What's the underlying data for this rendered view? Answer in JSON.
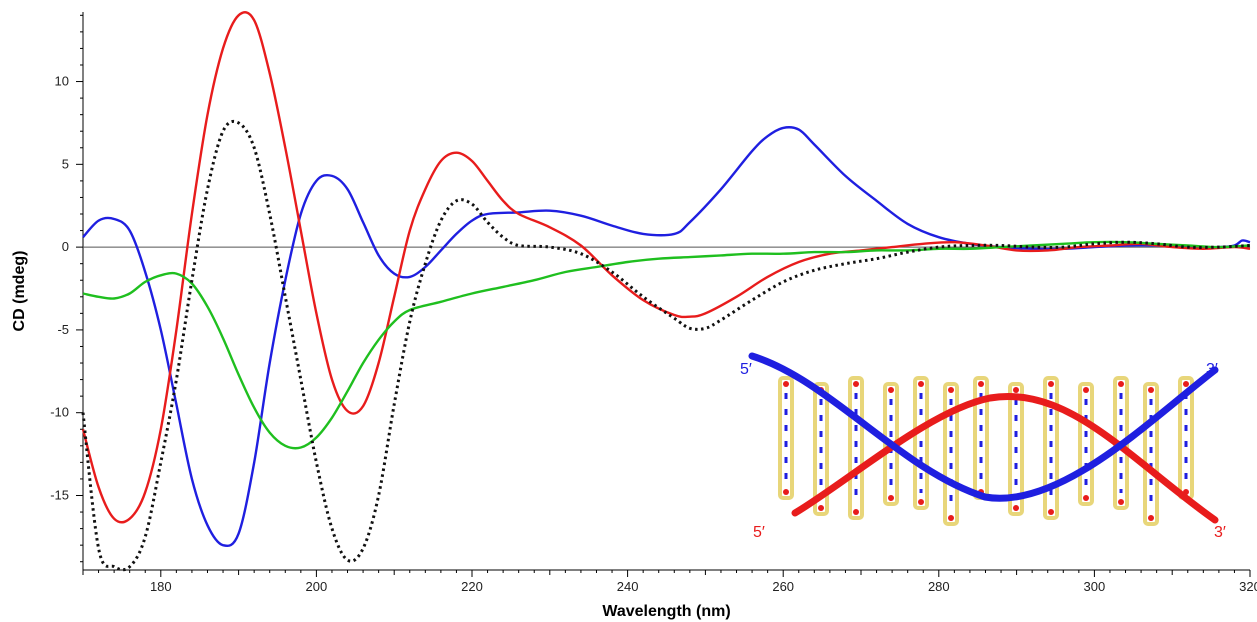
{
  "chart_data": {
    "type": "line",
    "title": "",
    "xlabel": "Wavelength  (nm)",
    "ylabel": "CD (mdeg)",
    "xlim": [
      170,
      320
    ],
    "ylim": [
      -19.5,
      14.2
    ],
    "xticks": [
      180,
      200,
      220,
      240,
      260,
      280,
      300,
      320
    ],
    "yticks": [
      10,
      5,
      0,
      -5,
      -10,
      -15
    ],
    "grid": false,
    "zero_line": true,
    "series": [
      {
        "color": "#1f1fe0",
        "style": "solid",
        "points": [
          [
            170,
            0.6
          ],
          [
            172,
            1.6
          ],
          [
            174,
            1.7
          ],
          [
            176,
            1.0
          ],
          [
            178,
            -1.5
          ],
          [
            180,
            -5
          ],
          [
            182,
            -9.5
          ],
          [
            184,
            -14
          ],
          [
            186,
            -16.8
          ],
          [
            188,
            -18
          ],
          [
            190,
            -17.3
          ],
          [
            192,
            -13
          ],
          [
            194,
            -7
          ],
          [
            196,
            -2
          ],
          [
            198,
            2
          ],
          [
            200,
            4
          ],
          [
            202,
            4.3
          ],
          [
            204,
            3.5
          ],
          [
            206,
            1.5
          ],
          [
            208,
            -0.5
          ],
          [
            210,
            -1.6
          ],
          [
            212,
            -1.8
          ],
          [
            214,
            -1.2
          ],
          [
            216,
            -0.2
          ],
          [
            218,
            0.8
          ],
          [
            220,
            1.6
          ],
          [
            222,
            2.0
          ],
          [
            226,
            2.1
          ],
          [
            230,
            2.2
          ],
          [
            234,
            1.9
          ],
          [
            238,
            1.3
          ],
          [
            242,
            0.8
          ],
          [
            246,
            0.8
          ],
          [
            248,
            1.5
          ],
          [
            252,
            3.5
          ],
          [
            256,
            5.8
          ],
          [
            258,
            6.7
          ],
          [
            260,
            7.2
          ],
          [
            262,
            7.1
          ],
          [
            264,
            6.2
          ],
          [
            268,
            4.3
          ],
          [
            272,
            2.8
          ],
          [
            276,
            1.4
          ],
          [
            280,
            0.6
          ],
          [
            284,
            0.2
          ],
          [
            288,
            0
          ],
          [
            292,
            -0.1
          ],
          [
            296,
            -0.1
          ],
          [
            300,
            0
          ],
          [
            304,
            0.1
          ],
          [
            308,
            0.1
          ],
          [
            312,
            0
          ],
          [
            316,
            0
          ],
          [
            318,
            0.1
          ],
          [
            319,
            0.4
          ],
          [
            320,
            0.3
          ]
        ]
      },
      {
        "color": "#e81c1c",
        "style": "solid",
        "points": [
          [
            170,
            -11
          ],
          [
            172,
            -14.5
          ],
          [
            174,
            -16.4
          ],
          [
            176,
            -16.4
          ],
          [
            178,
            -14.8
          ],
          [
            180,
            -11
          ],
          [
            182,
            -5
          ],
          [
            184,
            2
          ],
          [
            186,
            8
          ],
          [
            188,
            12
          ],
          [
            190,
            14
          ],
          [
            192,
            13.7
          ],
          [
            194,
            10.5
          ],
          [
            196,
            6
          ],
          [
            198,
            1
          ],
          [
            200,
            -4
          ],
          [
            202,
            -8
          ],
          [
            204,
            -9.9
          ],
          [
            206,
            -9.6
          ],
          [
            208,
            -7
          ],
          [
            210,
            -3
          ],
          [
            212,
            1
          ],
          [
            214,
            3.5
          ],
          [
            216,
            5.2
          ],
          [
            218,
            5.7
          ],
          [
            220,
            5.2
          ],
          [
            222,
            4
          ],
          [
            224,
            2.8
          ],
          [
            226,
            2.0
          ],
          [
            230,
            1.2
          ],
          [
            234,
            0.1
          ],
          [
            238,
            -1.7
          ],
          [
            242,
            -3.2
          ],
          [
            246,
            -4.1
          ],
          [
            248,
            -4.2
          ],
          [
            250,
            -4.0
          ],
          [
            254,
            -3.0
          ],
          [
            258,
            -1.8
          ],
          [
            262,
            -0.9
          ],
          [
            266,
            -0.4
          ],
          [
            270,
            -0.2
          ],
          [
            274,
            0.0
          ],
          [
            278,
            0.2
          ],
          [
            282,
            0.3
          ],
          [
            286,
            0.1
          ],
          [
            290,
            -0.2
          ],
          [
            294,
            -0.2
          ],
          [
            298,
            0
          ],
          [
            302,
            0.1
          ],
          [
            306,
            0.2
          ],
          [
            310,
            0
          ],
          [
            314,
            -0.1
          ],
          [
            318,
            0
          ],
          [
            320,
            -0.1
          ]
        ]
      },
      {
        "color": "#1fbf1f",
        "style": "solid",
        "points": [
          [
            170,
            -2.8
          ],
          [
            172,
            -3.0
          ],
          [
            174,
            -3.1
          ],
          [
            176,
            -2.8
          ],
          [
            178,
            -2.1
          ],
          [
            180,
            -1.7
          ],
          [
            182,
            -1.6
          ],
          [
            184,
            -2.2
          ],
          [
            186,
            -3.6
          ],
          [
            188,
            -5.5
          ],
          [
            190,
            -7.7
          ],
          [
            192,
            -9.7
          ],
          [
            194,
            -11.2
          ],
          [
            196,
            -12.0
          ],
          [
            198,
            -12.1
          ],
          [
            200,
            -11.5
          ],
          [
            202,
            -10.3
          ],
          [
            204,
            -8.7
          ],
          [
            206,
            -7.0
          ],
          [
            208,
            -5.6
          ],
          [
            210,
            -4.5
          ],
          [
            212,
            -3.8
          ],
          [
            216,
            -3.3
          ],
          [
            220,
            -2.8
          ],
          [
            224,
            -2.4
          ],
          [
            228,
            -2.0
          ],
          [
            232,
            -1.5
          ],
          [
            236,
            -1.2
          ],
          [
            240,
            -0.9
          ],
          [
            244,
            -0.7
          ],
          [
            248,
            -0.6
          ],
          [
            252,
            -0.5
          ],
          [
            256,
            -0.4
          ],
          [
            260,
            -0.4
          ],
          [
            264,
            -0.3
          ],
          [
            268,
            -0.3
          ],
          [
            272,
            -0.2
          ],
          [
            276,
            -0.2
          ],
          [
            280,
            -0.1
          ],
          [
            284,
            -0.1
          ],
          [
            288,
            0
          ],
          [
            292,
            0.1
          ],
          [
            296,
            0.2
          ],
          [
            300,
            0.3
          ],
          [
            304,
            0.3
          ],
          [
            308,
            0.2
          ],
          [
            312,
            0.1
          ],
          [
            316,
            0
          ],
          [
            320,
            0.1
          ]
        ]
      },
      {
        "color": "#111111",
        "style": "dotted",
        "points": [
          [
            170,
            -10
          ],
          [
            172,
            -18.2
          ],
          [
            174,
            -19.3
          ],
          [
            176,
            -19.3
          ],
          [
            178,
            -17.5
          ],
          [
            180,
            -13
          ],
          [
            182,
            -8
          ],
          [
            184,
            -2
          ],
          [
            186,
            3.5
          ],
          [
            188,
            7
          ],
          [
            190,
            7.5
          ],
          [
            192,
            6
          ],
          [
            194,
            2
          ],
          [
            196,
            -3
          ],
          [
            198,
            -8
          ],
          [
            200,
            -13
          ],
          [
            202,
            -17
          ],
          [
            204,
            -18.9
          ],
          [
            206,
            -18.2
          ],
          [
            208,
            -15
          ],
          [
            210,
            -9.5
          ],
          [
            212,
            -4.5
          ],
          [
            214,
            -1
          ],
          [
            216,
            1.6
          ],
          [
            218,
            2.8
          ],
          [
            220,
            2.6
          ],
          [
            222,
            1.5
          ],
          [
            224,
            0.6
          ],
          [
            226,
            0.1
          ],
          [
            230,
            0
          ],
          [
            234,
            -0.4
          ],
          [
            238,
            -1.5
          ],
          [
            242,
            -3.0
          ],
          [
            246,
            -4.3
          ],
          [
            248,
            -4.9
          ],
          [
            250,
            -4.9
          ],
          [
            252,
            -4.4
          ],
          [
            256,
            -3.2
          ],
          [
            260,
            -2.1
          ],
          [
            264,
            -1.4
          ],
          [
            268,
            -1.0
          ],
          [
            272,
            -0.7
          ],
          [
            276,
            -0.3
          ],
          [
            280,
            0
          ],
          [
            284,
            0.1
          ],
          [
            288,
            0.1
          ],
          [
            292,
            0
          ],
          [
            296,
            0
          ],
          [
            300,
            0.2
          ],
          [
            304,
            0.3
          ],
          [
            308,
            0.2
          ],
          [
            312,
            0
          ],
          [
            316,
            0
          ],
          [
            320,
            0.1
          ]
        ]
      }
    ]
  },
  "inset": {
    "strand_labels": {
      "blue_5": "5′",
      "blue_3": "3′",
      "red_5": "5′",
      "red_3": "3′"
    },
    "blue_color": "#1f1fe0",
    "red_color": "#e81c1c",
    "base_color": "#e8d67a"
  }
}
